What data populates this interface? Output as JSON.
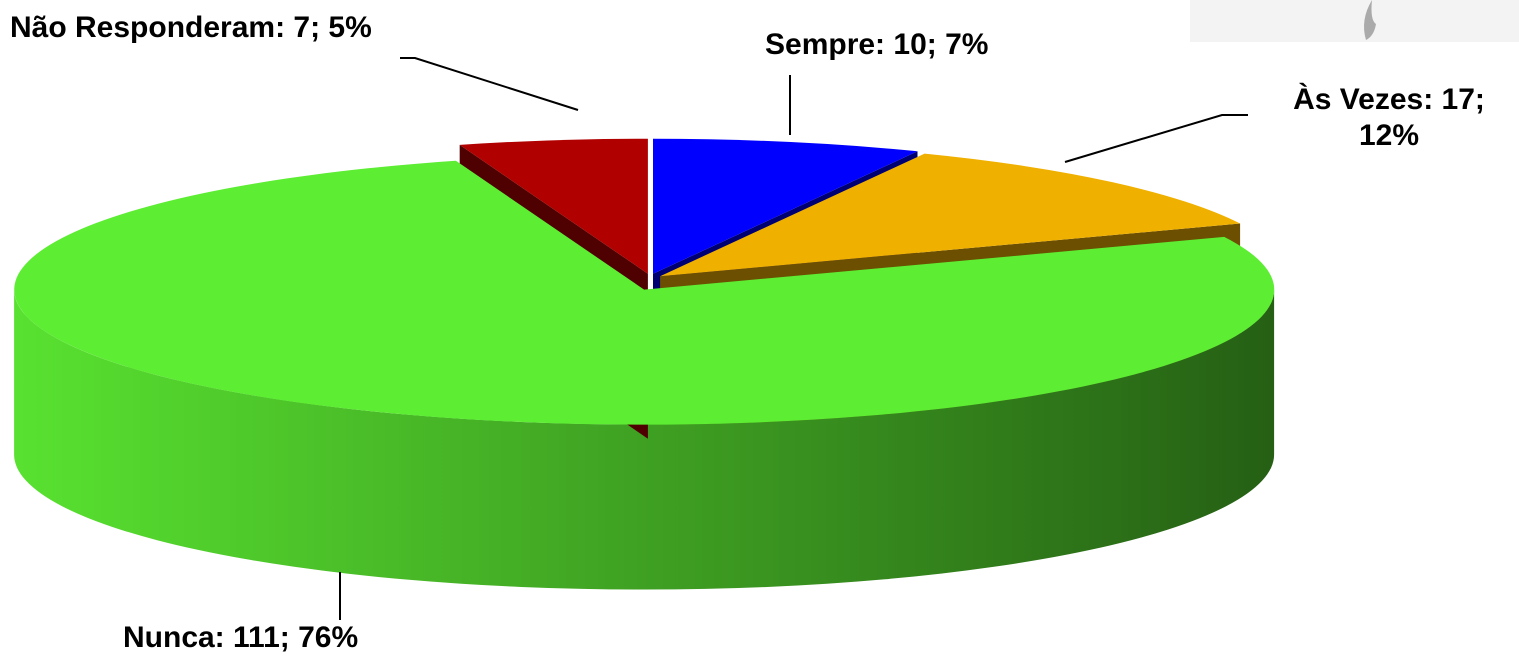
{
  "chart_data": {
    "type": "pie3d",
    "categories": [
      "Sempre",
      "Às Vezes",
      "Nunca",
      "Não Responderam"
    ],
    "values": [
      10,
      17,
      111,
      7
    ],
    "value_labels": [
      "Sempre: 10; 7%",
      "Às Vezes: 17; 12%",
      "Nunca: 111; 76%",
      "Não Responderam: 7; 5%"
    ],
    "colors": [
      "#0000ff",
      "#f0b000",
      "#5ded33",
      "#b00000"
    ]
  }
}
